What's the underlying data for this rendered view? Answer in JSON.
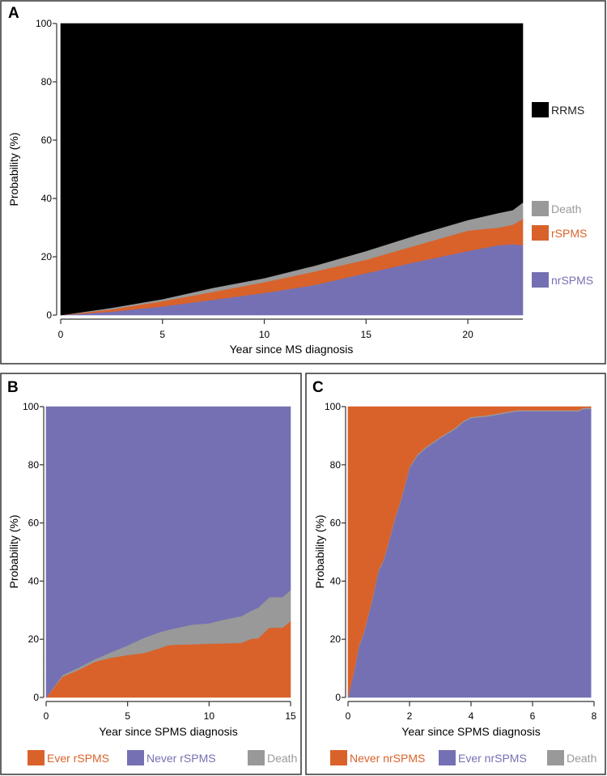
{
  "chart_data": [
    {
      "panel_label": "A",
      "type": "area",
      "stacked": true,
      "xlabel": "Year since MS diagnosis",
      "ylabel": "Probability (%)",
      "xlim": [
        0,
        22.7
      ],
      "ylim": [
        0,
        100
      ],
      "x_ticks": [
        "0",
        "5",
        "10",
        "15",
        "20"
      ],
      "y_ticks": [
        "0",
        "20",
        "40",
        "60",
        "80",
        "100"
      ],
      "grid": false,
      "legend_position": "right",
      "x": [
        0,
        2.5,
        5,
        7.5,
        10,
        12.5,
        15,
        17.5,
        20,
        21.5,
        22.2,
        22.7
      ],
      "series": [
        {
          "name": "nrSPMS",
          "color": "#7570b3",
          "values": [
            0,
            1.2,
            3,
            5.3,
            7.6,
            10.4,
            14.4,
            18.3,
            22,
            24,
            24.3,
            24
          ]
        },
        {
          "name": "rSPMS",
          "color": "#d9622b",
          "values": [
            0,
            0.8,
            1.8,
            2.7,
            3.7,
            4.6,
            4.6,
            5.7,
            7,
            6,
            6.7,
            9
          ]
        },
        {
          "name": "Death",
          "color": "#999999",
          "values": [
            0,
            0.5,
            0.7,
            1.4,
            1.4,
            2,
            3,
            3.5,
            3.6,
            5,
            5,
            5.6
          ]
        },
        {
          "name": "RRMS",
          "color": "#000000",
          "values": [
            100,
            97.5,
            94.5,
            90.6,
            87.3,
            83,
            78,
            72.5,
            67.4,
            65,
            64,
            61.4
          ]
        }
      ],
      "legend": [
        {
          "label": "RRMS",
          "color": "#000000",
          "text_color": "#222222"
        },
        {
          "label": "Death",
          "color": "#999999",
          "text_color": "#999999"
        },
        {
          "label": "rSPMS",
          "color": "#d9622b",
          "text_color": "#d9622b"
        },
        {
          "label": "nrSPMS",
          "color": "#7570b3",
          "text_color": "#7570b3"
        }
      ]
    },
    {
      "panel_label": "B",
      "type": "area",
      "stacked": true,
      "xlabel": "Year since SPMS diagnosis",
      "ylabel": "Probability (%)",
      "xlim": [
        0,
        15
      ],
      "ylim": [
        0,
        100
      ],
      "x_ticks": [
        "0",
        "5",
        "10",
        "15"
      ],
      "y_ticks": [
        "0",
        "20",
        "40",
        "60",
        "80",
        "100"
      ],
      "grid": false,
      "legend_position": "bottom",
      "x": [
        0,
        1,
        2,
        3,
        4,
        5,
        6,
        7,
        7.5,
        8,
        9,
        10,
        11,
        12,
        12.6,
        13,
        13.7,
        14.5,
        15
      ],
      "series": [
        {
          "name": "Ever rSPMS",
          "color": "#d9622b",
          "values": [
            0,
            7.1,
            9.5,
            12.3,
            13.7,
            14.6,
            15.3,
            17,
            18,
            18.2,
            18.3,
            18.5,
            18.6,
            18.8,
            20.2,
            20.3,
            24,
            24,
            26.2
          ]
        },
        {
          "name": "Death",
          "color": "#999999",
          "values": [
            0,
            0.6,
            0.8,
            0.9,
            1.9,
            3.3,
            5.2,
            5.5,
            5.3,
            5.7,
            6.8,
            7,
            8.3,
            9.2,
            9.7,
            10.5,
            10.5,
            10.5,
            10.7
          ]
        },
        {
          "name": "Never rSPMS",
          "color": "#7570b3",
          "values": [
            100,
            92.3,
            89.7,
            86.8,
            84.4,
            82.1,
            79.5,
            77.5,
            76.7,
            76.1,
            74.9,
            74.5,
            73.1,
            72,
            70.1,
            69.2,
            65.5,
            65.5,
            63.1
          ]
        }
      ],
      "legend": [
        {
          "label": "Ever rSPMS",
          "color": "#d9622b",
          "text_color": "#d9622b"
        },
        {
          "label": "Never rSPMS",
          "color": "#7570b3",
          "text_color": "#7570b3"
        },
        {
          "label": "Death",
          "color": "#999999",
          "text_color": "#999999"
        }
      ]
    },
    {
      "panel_label": "C",
      "type": "area",
      "stacked": true,
      "xlabel": "Year since SPMS diagnosis",
      "ylabel": "Probability (%)",
      "xlim": [
        0,
        8
      ],
      "ylim": [
        0,
        100
      ],
      "x_ticks": [
        "0",
        "2",
        "4",
        "6",
        "8"
      ],
      "y_ticks": [
        "0",
        "20",
        "40",
        "60",
        "80",
        "100"
      ],
      "grid": false,
      "legend_position": "bottom",
      "x": [
        0,
        0.25,
        0.35,
        0.5,
        0.75,
        1,
        1.1,
        1.25,
        1.5,
        1.75,
        2,
        2.25,
        2.5,
        3,
        3.5,
        3.75,
        4,
        4.5,
        5,
        5.5,
        7.5,
        7.65,
        7.9
      ],
      "series": [
        {
          "name": "Ever nrSPMS",
          "color": "#7570b3",
          "values": [
            0,
            11.4,
            17.4,
            21.6,
            31.8,
            43.8,
            45.6,
            50.3,
            60.5,
            68.8,
            79,
            83.1,
            85.5,
            89.2,
            92.4,
            94.7,
            96.1,
            96.6,
            97.5,
            98.4,
            98.4,
            99.2,
            99.2
          ]
        },
        {
          "name": "Death",
          "color": "#999999",
          "values": [
            0,
            0.4,
            0.4,
            0.4,
            0.4,
            0.4,
            0.4,
            0.4,
            0.4,
            0.4,
            0.4,
            0.4,
            0.4,
            0.4,
            0.4,
            0.4,
            0.4,
            0.4,
            0.4,
            0.4,
            0.4,
            0.4,
            0.4
          ]
        },
        {
          "name": "Never nrSPMS",
          "color": "#d9622b",
          "values": [
            100,
            88.2,
            82.2,
            78,
            67.8,
            55.8,
            54,
            49.3,
            39.1,
            30.8,
            20.6,
            16.5,
            14.1,
            10.4,
            7.2,
            4.9,
            3.5,
            3,
            2.1,
            1.2,
            1.2,
            0.4,
            0.4
          ]
        }
      ],
      "legend": [
        {
          "label": "Never nrSPMS",
          "color": "#d9622b",
          "text_color": "#d9622b"
        },
        {
          "label": "Ever nrSPMS",
          "color": "#7570b3",
          "text_color": "#7570b3"
        },
        {
          "label": "Death",
          "color": "#999999",
          "text_color": "#999999"
        }
      ]
    }
  ]
}
